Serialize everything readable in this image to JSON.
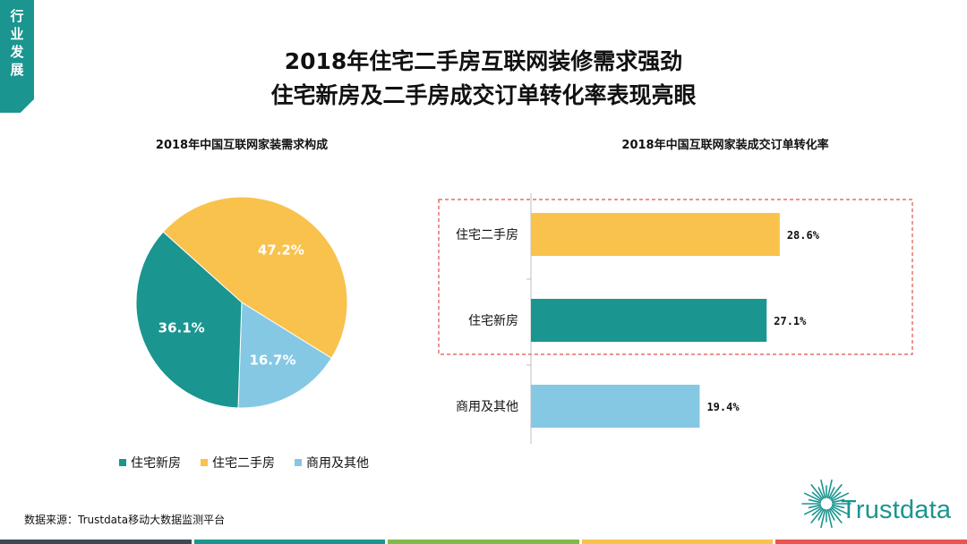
{
  "side_tab": {
    "label": "行业发展",
    "color": "#1a9590"
  },
  "title": {
    "line1": "2018年住宅二手房互联网装修需求强劲",
    "line2": "住宅新房及二手房成交订单转化率表现亮眼"
  },
  "chart_data": [
    {
      "type": "pie",
      "title": "2018年中国互联网家装需求构成",
      "slices": [
        {
          "name": "住宅新房",
          "value": 36.1,
          "label": "36.1%",
          "color": "#1a9590"
        },
        {
          "name": "住宅二手房",
          "value": 47.2,
          "label": "47.2%",
          "color": "#f8c24c"
        },
        {
          "name": "商用及其他",
          "value": 16.7,
          "label": "16.7%",
          "color": "#85c8e4"
        }
      ],
      "legend": [
        "住宅新房",
        "住宅二手房",
        "商用及其他"
      ],
      "legend_position": "bottom"
    },
    {
      "type": "bar",
      "orientation": "horizontal",
      "title": "2018年中国互联网家装成交订单转化率",
      "categories": [
        "住宅二手房",
        "住宅新房",
        "商用及其他"
      ],
      "values": [
        28.6,
        27.1,
        19.4
      ],
      "value_labels": [
        "28.6%",
        "27.1%",
        "19.4%"
      ],
      "colors": [
        "#f8c24c",
        "#1a9590",
        "#85c8e4"
      ],
      "xlim": [
        0,
        35
      ],
      "highlight_box": {
        "categories": [
          "住宅二手房",
          "住宅新房"
        ],
        "style": "dashed",
        "color": "#e0504a"
      }
    }
  ],
  "source": "数据来源：Trustdata移动大数据监测平台",
  "logo": {
    "text": "Trustdata",
    "icon": "sunburst-icon",
    "color": "#1a9590"
  },
  "footer_colors": [
    "#3d4a55",
    "#1a9590",
    "#7fba4a",
    "#f8c24c",
    "#e8554e"
  ]
}
